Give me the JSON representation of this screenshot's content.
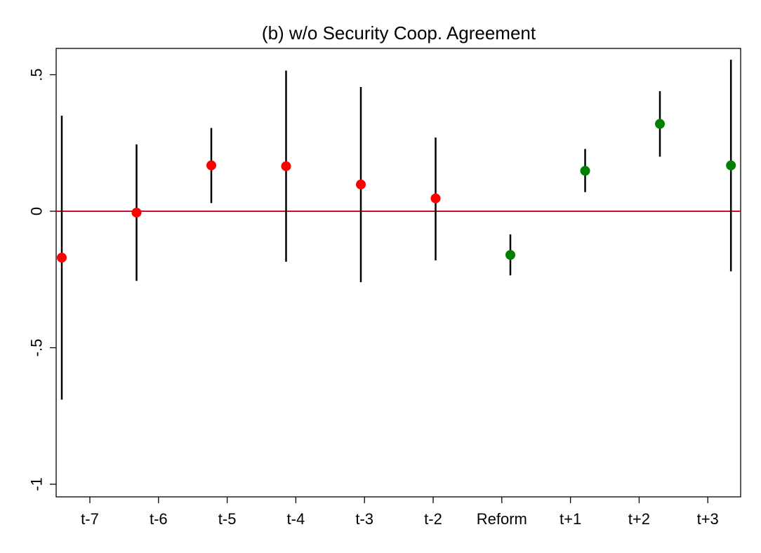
{
  "chart_data": {
    "type": "scatter",
    "title": "(b) w/o Security Coop. Agreement",
    "xlabel": "",
    "ylabel": "",
    "ylim": [
      -1.05,
      0.6
    ],
    "yticks": [
      {
        "value": 0.5,
        "label": ".5"
      },
      {
        "value": 0,
        "label": "0"
      },
      {
        "value": -0.5,
        "label": "-.5"
      },
      {
        "value": -1,
        "label": "-1"
      }
    ],
    "x_tick_labels": [
      "t-7",
      "t-6",
      "t-5",
      "t-4",
      "t-3",
      "t-2",
      "Reform",
      "t+1",
      "t+2",
      "t+3"
    ],
    "reference_line": {
      "value": 0,
      "color": "#c8102e"
    },
    "grid": false,
    "legend": "none",
    "colors": {
      "pre": "#ff0000",
      "post": "#008000",
      "ci": "#000000"
    },
    "series": [
      {
        "points": [
          {
            "x": -7.0,
            "y": -0.17,
            "lo": -0.69,
            "hi": 0.35
          },
          {
            "x": -6.0,
            "y": -0.005,
            "lo": -0.255,
            "hi": 0.245
          },
          {
            "x": -5.0,
            "y": 0.168,
            "lo": 0.03,
            "hi": 0.305
          },
          {
            "x": -4.0,
            "y": 0.165,
            "lo": -0.185,
            "hi": 0.515
          },
          {
            "x": -3.0,
            "y": 0.098,
            "lo": -0.26,
            "hi": 0.455
          },
          {
            "x": -2.0,
            "y": 0.047,
            "lo": -0.18,
            "hi": 0.27
          }
        ]
      },
      {
        "points": [
          {
            "x": -1.0,
            "y": -0.16,
            "lo": -0.235,
            "hi": -0.085
          },
          {
            "x": 0.0,
            "y": 0.148,
            "lo": 0.07,
            "hi": 0.228
          },
          {
            "x": 1.0,
            "y": 0.32,
            "lo": 0.2,
            "hi": 0.44
          },
          {
            "x": 1.95,
            "y": 0.168,
            "lo": -0.22,
            "hi": 0.555
          }
        ]
      }
    ]
  }
}
